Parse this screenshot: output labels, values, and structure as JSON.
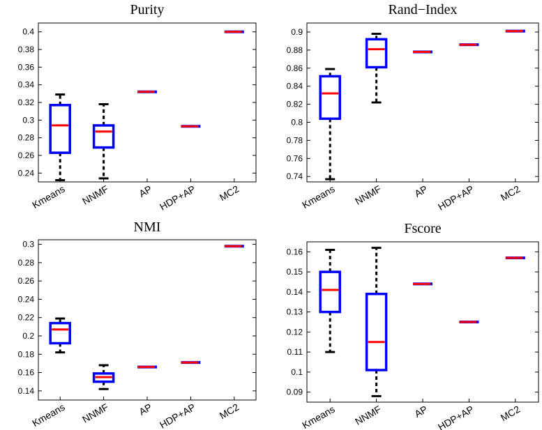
{
  "colors": {
    "box": "#0000ff",
    "median": "#ff0000",
    "whisker": "#000000"
  },
  "chart_data": [
    {
      "type": "boxplot",
      "title": "Purity",
      "categories": [
        "Kmeans",
        "NNMF",
        "AP",
        "HDP+AP",
        "MC2"
      ],
      "ylim": [
        0.23,
        0.41
      ],
      "yticks": [
        0.24,
        0.26,
        0.28,
        0.3,
        0.32,
        0.34,
        0.36,
        0.38,
        0.4
      ],
      "ytick_labels": [
        "0.24",
        "0.26",
        "0.28",
        "0.3",
        "0.32",
        "0.34",
        "0.36",
        "0.38",
        "0.4"
      ],
      "boxes": [
        {
          "min": 0.232,
          "q1": 0.263,
          "median": 0.294,
          "q3": 0.317,
          "max": 0.329
        },
        {
          "min": 0.234,
          "q1": 0.269,
          "median": 0.287,
          "q3": 0.294,
          "max": 0.318
        },
        {
          "min": 0.332,
          "q1": 0.332,
          "median": 0.332,
          "q3": 0.332,
          "max": 0.332
        },
        {
          "min": 0.293,
          "q1": 0.293,
          "median": 0.293,
          "q3": 0.293,
          "max": 0.293
        },
        {
          "min": 0.4,
          "q1": 0.4,
          "median": 0.4,
          "q3": 0.4,
          "max": 0.4
        }
      ]
    },
    {
      "type": "boxplot",
      "title": "Rand−Index",
      "categories": [
        "Kmeans",
        "NNMF",
        "AP",
        "HDP+AP",
        "MC2"
      ],
      "ylim": [
        0.734,
        0.91
      ],
      "yticks": [
        0.74,
        0.76,
        0.78,
        0.8,
        0.82,
        0.84,
        0.86,
        0.88,
        0.9
      ],
      "ytick_labels": [
        "0.74",
        "0.76",
        "0.78",
        "0.8",
        "0.82",
        "0.84",
        "0.86",
        "0.88",
        "0.9"
      ],
      "boxes": [
        {
          "min": 0.737,
          "q1": 0.804,
          "median": 0.832,
          "q3": 0.851,
          "max": 0.859
        },
        {
          "min": 0.822,
          "q1": 0.861,
          "median": 0.881,
          "q3": 0.892,
          "max": 0.898
        },
        {
          "min": 0.878,
          "q1": 0.878,
          "median": 0.878,
          "q3": 0.878,
          "max": 0.878
        },
        {
          "min": 0.886,
          "q1": 0.886,
          "median": 0.886,
          "q3": 0.886,
          "max": 0.886
        },
        {
          "min": 0.901,
          "q1": 0.901,
          "median": 0.901,
          "q3": 0.901,
          "max": 0.901
        }
      ]
    },
    {
      "type": "boxplot",
      "title": "NMI",
      "categories": [
        "Kmeans",
        "NNMF",
        "AP",
        "HDP+AP",
        "MC2"
      ],
      "ylim": [
        0.13,
        0.305
      ],
      "yticks": [
        0.14,
        0.16,
        0.18,
        0.2,
        0.22,
        0.24,
        0.26,
        0.28,
        0.3
      ],
      "ytick_labels": [
        "0.14",
        "0.16",
        "0.18",
        "0.2",
        "0.22",
        "0.24",
        "0.26",
        "0.28",
        "0.3"
      ],
      "boxes": [
        {
          "min": 0.182,
          "q1": 0.192,
          "median": 0.207,
          "q3": 0.214,
          "max": 0.219
        },
        {
          "min": 0.142,
          "q1": 0.15,
          "median": 0.155,
          "q3": 0.159,
          "max": 0.168
        },
        {
          "min": 0.166,
          "q1": 0.166,
          "median": 0.166,
          "q3": 0.166,
          "max": 0.166
        },
        {
          "min": 0.171,
          "q1": 0.171,
          "median": 0.171,
          "q3": 0.171,
          "max": 0.171
        },
        {
          "min": 0.298,
          "q1": 0.298,
          "median": 0.298,
          "q3": 0.298,
          "max": 0.298
        }
      ]
    },
    {
      "type": "boxplot",
      "title": "Fscore",
      "categories": [
        "Kmeans",
        "NNMF",
        "AP",
        "HDP+AP",
        "MC2"
      ],
      "ylim": [
        0.085,
        0.165
      ],
      "yticks": [
        0.09,
        0.1,
        0.11,
        0.12,
        0.13,
        0.14,
        0.15,
        0.16
      ],
      "ytick_labels": [
        "0.09",
        "0.1",
        "0.11",
        "0.12",
        "0.13",
        "0.14",
        "0.15",
        "0.16"
      ],
      "boxes": [
        {
          "min": 0.11,
          "q1": 0.13,
          "median": 0.141,
          "q3": 0.15,
          "max": 0.161
        },
        {
          "min": 0.088,
          "q1": 0.101,
          "median": 0.115,
          "q3": 0.139,
          "max": 0.162
        },
        {
          "min": 0.144,
          "q1": 0.144,
          "median": 0.144,
          "q3": 0.144,
          "max": 0.144
        },
        {
          "min": 0.125,
          "q1": 0.125,
          "median": 0.125,
          "q3": 0.125,
          "max": 0.125
        },
        {
          "min": 0.157,
          "q1": 0.157,
          "median": 0.157,
          "q3": 0.157,
          "max": 0.157
        }
      ]
    }
  ]
}
